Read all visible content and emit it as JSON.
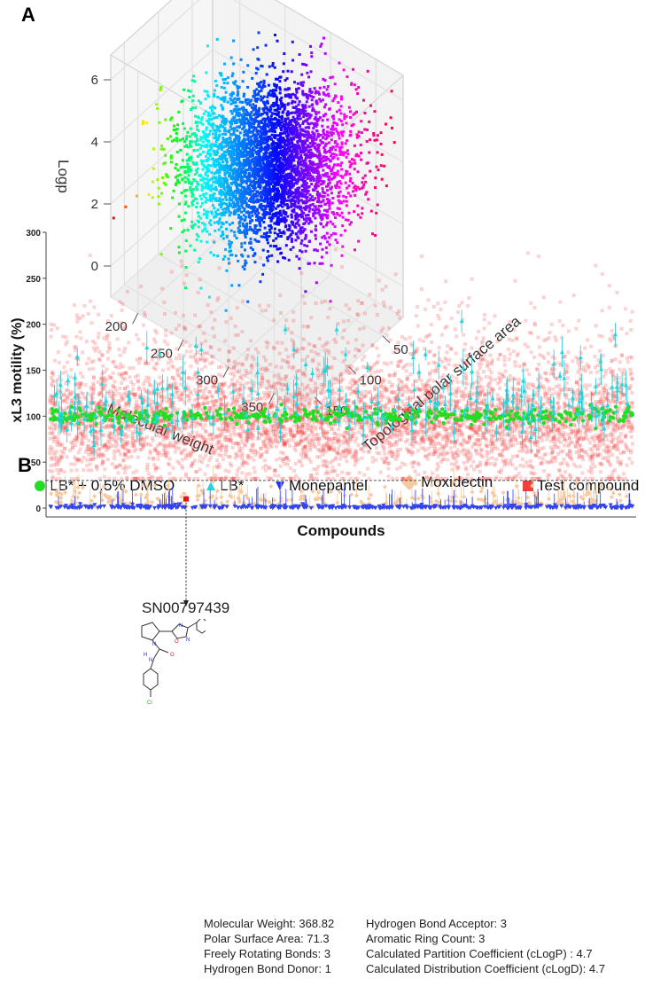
{
  "panel_a": {
    "label": "A",
    "chart_data": {
      "type": "scatter3d",
      "x_axis": {
        "label": "Molecular weight",
        "ticks": [
          200,
          250,
          300,
          350
        ],
        "range": [
          170,
          380
        ]
      },
      "y_axis": {
        "label": "Topological polar surface area",
        "ticks": [
          50,
          100,
          150
        ],
        "range": [
          20,
          170
        ]
      },
      "z_axis": {
        "label": "Logp",
        "ticks": [
          0,
          2,
          4,
          6
        ],
        "range": [
          -1,
          6.8
        ]
      },
      "color_encoding": "rainbow gradient (red/yellow/green at low molecular weight through cyan, blue, magenta to red at high)",
      "grid": true
    }
  },
  "panel_b": {
    "label": "B",
    "chart_data": {
      "type": "scatter",
      "xlabel": "Compounds",
      "ylabel": "xL3 motility (%)",
      "ylim": [
        0,
        300
      ],
      "yticks": [
        0,
        50,
        100,
        150,
        200,
        250,
        300
      ],
      "threshold_line": 30,
      "series": [
        {
          "name": "LB* + 0.5% DMSO",
          "marker": "circle",
          "color": "#22dd22",
          "typical_value": 100
        },
        {
          "name": "LB*",
          "marker": "triangle-up",
          "color": "#22d8e0",
          "typical_value": 110
        },
        {
          "name": "Monepantel",
          "marker": "triangle-down",
          "color": "#3344ee",
          "typical_value": 0
        },
        {
          "name": "Moxidectin",
          "marker": "diamond",
          "color": "#f6c9a0",
          "typical_value": 10
        },
        {
          "name": "Test compound",
          "marker": "square",
          "color": "#f04040",
          "typical_value": 90
        }
      ],
      "highlighted_point": {
        "label": "SN00797439",
        "value": 10
      }
    }
  },
  "compound": {
    "id": "SN00797439",
    "properties_left": [
      "Molecular Weight: 368.82",
      "Polar Surface Area: 71.3",
      "Freely Rotating Bonds: 3",
      "Hydrogen Bond Donor: 1"
    ],
    "properties_right": [
      "Hydrogen Bond Acceptor: 3",
      "Aromatic Ring Count: 3",
      "Calculated Partition Coefficient (cLogP) : 4.7",
      "Calculated Distribution Coefficient (cLogD): 4.7"
    ],
    "atoms": {
      "n1": "N",
      "n2": "N",
      "o1": "O",
      "o2": "O",
      "nh": "H",
      "nh_n": "N",
      "cl": "Cl"
    }
  }
}
